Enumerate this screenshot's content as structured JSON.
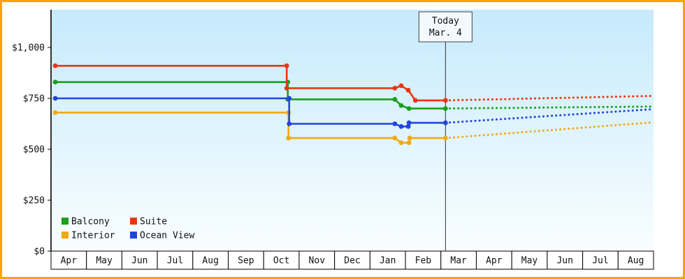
{
  "chart_data": {
    "type": "line",
    "title": "",
    "xlabel": "",
    "ylabel": "",
    "x_categories": [
      "Apr",
      "May",
      "Jun",
      "Jul",
      "Aug",
      "Sep",
      "Oct",
      "Nov",
      "Dec",
      "Jan",
      "Feb",
      "Mar",
      "Apr",
      "May",
      "Jun",
      "Jul",
      "Aug"
    ],
    "x_units_range": [
      0,
      17
    ],
    "y_ticks": [
      {
        "value": 0,
        "label": "$0"
      },
      {
        "value": 250,
        "label": "$250"
      },
      {
        "value": 500,
        "label": "$500"
      },
      {
        "value": 750,
        "label": "$750"
      },
      {
        "value": 1000,
        "label": "$1,000"
      }
    ],
    "grid": false,
    "today": {
      "x": 11.13,
      "label_line1": "Today",
      "label_line2": "Mar. 4"
    },
    "series": [
      {
        "name": "Balcony",
        "color": "#18a018",
        "history": [
          [
            0.12,
            830
          ],
          [
            6.68,
            830
          ],
          [
            6.68,
            745
          ],
          [
            9.7,
            745
          ],
          [
            9.88,
            715
          ],
          [
            10.1,
            700
          ],
          [
            11.13,
            700
          ]
        ],
        "forecast": [
          [
            11.13,
            700
          ],
          [
            17,
            710
          ]
        ]
      },
      {
        "name": "Suite",
        "color": "#ee3311",
        "history": [
          [
            0.12,
            910
          ],
          [
            6.65,
            910
          ],
          [
            6.65,
            800
          ],
          [
            9.7,
            800
          ],
          [
            9.88,
            812
          ],
          [
            10.08,
            790
          ],
          [
            10.28,
            740
          ],
          [
            11.13,
            740
          ]
        ],
        "forecast": [
          [
            11.13,
            740
          ],
          [
            17,
            762
          ]
        ]
      },
      {
        "name": "Interior",
        "color": "#f0a818",
        "history": [
          [
            0.12,
            680
          ],
          [
            6.7,
            680
          ],
          [
            6.7,
            555
          ],
          [
            9.7,
            555
          ],
          [
            9.88,
            532
          ],
          [
            10.1,
            532
          ],
          [
            10.12,
            555
          ],
          [
            11.13,
            555
          ]
        ],
        "forecast": [
          [
            11.13,
            555
          ],
          [
            17,
            632
          ]
        ]
      },
      {
        "name": "Ocean View",
        "color": "#2244dd",
        "history": [
          [
            0.12,
            750
          ],
          [
            6.72,
            750
          ],
          [
            6.72,
            625
          ],
          [
            9.7,
            625
          ],
          [
            9.88,
            612
          ],
          [
            10.08,
            612
          ],
          [
            10.1,
            630
          ],
          [
            11.13,
            630
          ]
        ],
        "forecast": [
          [
            11.13,
            630
          ],
          [
            17,
            697
          ]
        ]
      }
    ],
    "legend": {
      "position": "bottom-left",
      "order": [
        "Balcony",
        "Suite",
        "Interior",
        "Ocean View"
      ]
    }
  },
  "colors": {
    "frame": "#f8a500",
    "plot_bg_top": "#c6eafc",
    "plot_bg_bottom": "#f9feff",
    "axis": "#000000",
    "today_line": "#333333",
    "today_box_bg": "#f2fafe",
    "today_box_border": "#444444",
    "month_cell_bg": "#ffffff",
    "text": "#111111"
  }
}
